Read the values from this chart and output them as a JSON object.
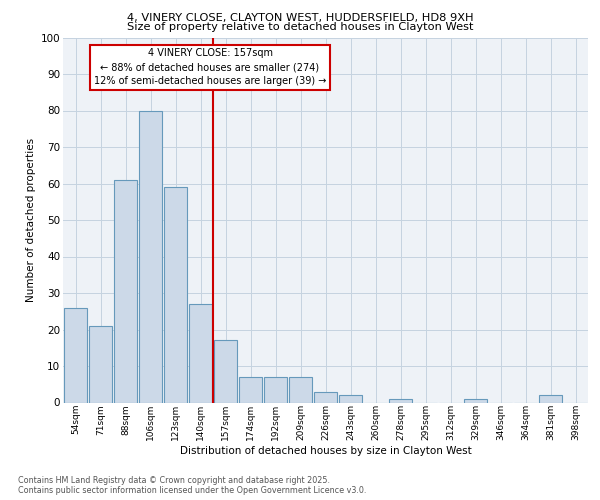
{
  "title_line1": "4, VINERY CLOSE, CLAYTON WEST, HUDDERSFIELD, HD8 9XH",
  "title_line2": "Size of property relative to detached houses in Clayton West",
  "xlabel": "Distribution of detached houses by size in Clayton West",
  "ylabel": "Number of detached properties",
  "footer_line1": "Contains HM Land Registry data © Crown copyright and database right 2025.",
  "footer_line2": "Contains public sector information licensed under the Open Government Licence v3.0.",
  "annotation_line1": "4 VINERY CLOSE: 157sqm",
  "annotation_line2": "← 88% of detached houses are smaller (274)",
  "annotation_line3": "12% of semi-detached houses are larger (39) →",
  "bar_color": "#ccd9e8",
  "bar_edge_color": "#6699bb",
  "vline_color": "#cc0000",
  "annotation_box_edge_color": "#cc0000",
  "grid_color": "#c5d3e0",
  "background_color": "#eef2f7",
  "categories": [
    "54sqm",
    "71sqm",
    "88sqm",
    "106sqm",
    "123sqm",
    "140sqm",
    "157sqm",
    "174sqm",
    "192sqm",
    "209sqm",
    "226sqm",
    "243sqm",
    "260sqm",
    "278sqm",
    "295sqm",
    "312sqm",
    "329sqm",
    "346sqm",
    "364sqm",
    "381sqm",
    "398sqm"
  ],
  "values": [
    26,
    21,
    61,
    80,
    59,
    27,
    17,
    7,
    7,
    7,
    3,
    2,
    0,
    1,
    0,
    0,
    1,
    0,
    0,
    2,
    0
  ],
  "ylim": [
    0,
    100
  ],
  "yticks": [
    0,
    10,
    20,
    30,
    40,
    50,
    60,
    70,
    80,
    90,
    100
  ],
  "vline_x_index": 6
}
